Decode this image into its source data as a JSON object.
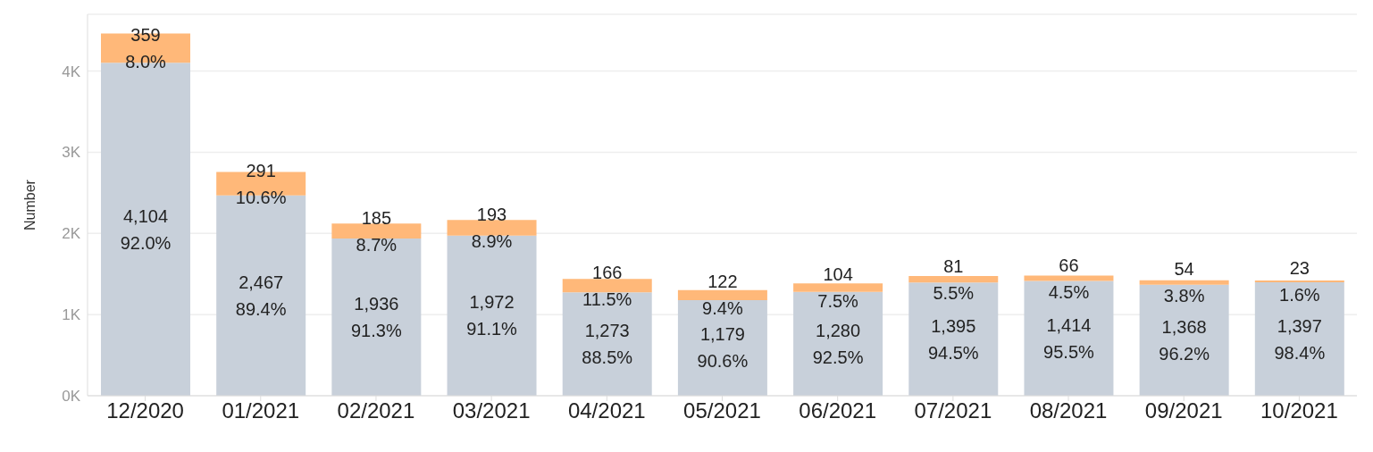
{
  "chart_data": {
    "type": "bar",
    "stacked": true,
    "ylabel": "Number",
    "categories": [
      "12/2020",
      "01/2021",
      "02/2021",
      "03/2021",
      "04/2021",
      "05/2021",
      "06/2021",
      "07/2021",
      "08/2021",
      "09/2021",
      "10/2021"
    ],
    "series": [
      {
        "color": "#c8d0da",
        "values": [
          4104,
          2467,
          1936,
          1972,
          1273,
          1179,
          1280,
          1395,
          1414,
          1368,
          1397
        ],
        "value_labels": [
          "4,104\n92.0%",
          "2,467\n89.4%",
          "1,936\n91.3%",
          "1,972\n91.1%",
          "1,273\n88.5%",
          "1,179\n90.6%",
          "1,280\n92.5%",
          "1,395\n94.5%",
          "1,414\n95.5%",
          "1,368\n96.2%",
          "1,397\n98.4%"
        ]
      },
      {
        "color": "#ffb879",
        "values": [
          359,
          291,
          185,
          193,
          166,
          122,
          104,
          81,
          66,
          54,
          23
        ],
        "value_labels": [
          "359\n8.0%",
          "291\n10.6%",
          "185\n8.7%",
          "193\n8.9%",
          "166\n11.5%",
          "122\n9.4%",
          "104\n7.5%",
          "81\n5.5%",
          "66\n4.5%",
          "54\n3.8%",
          "23\n1.6%"
        ]
      }
    ],
    "ylim": [
      0,
      4700
    ],
    "yticks": [
      {
        "value": 0,
        "label": "0K"
      },
      {
        "value": 1000,
        "label": "1K"
      },
      {
        "value": 2000,
        "label": "2K"
      },
      {
        "value": 3000,
        "label": "3K"
      },
      {
        "value": 4000,
        "label": "4K"
      }
    ],
    "grid": "y"
  }
}
